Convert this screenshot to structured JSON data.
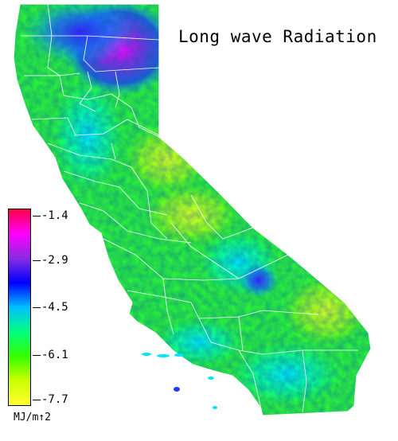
{
  "title": "Long wave Radiation",
  "colorbar": {
    "ticks": [
      "-1.4",
      "-2.9",
      "-4.5",
      "-6.1",
      "-7.7"
    ],
    "units": "MJ/m↑2",
    "colors": [
      "#ff0044",
      "#ff00ff",
      "#8a2be2",
      "#0000ff",
      "#00bfff",
      "#00ff80",
      "#33ff00",
      "#ccff00",
      "#ffff33"
    ]
  }
}
